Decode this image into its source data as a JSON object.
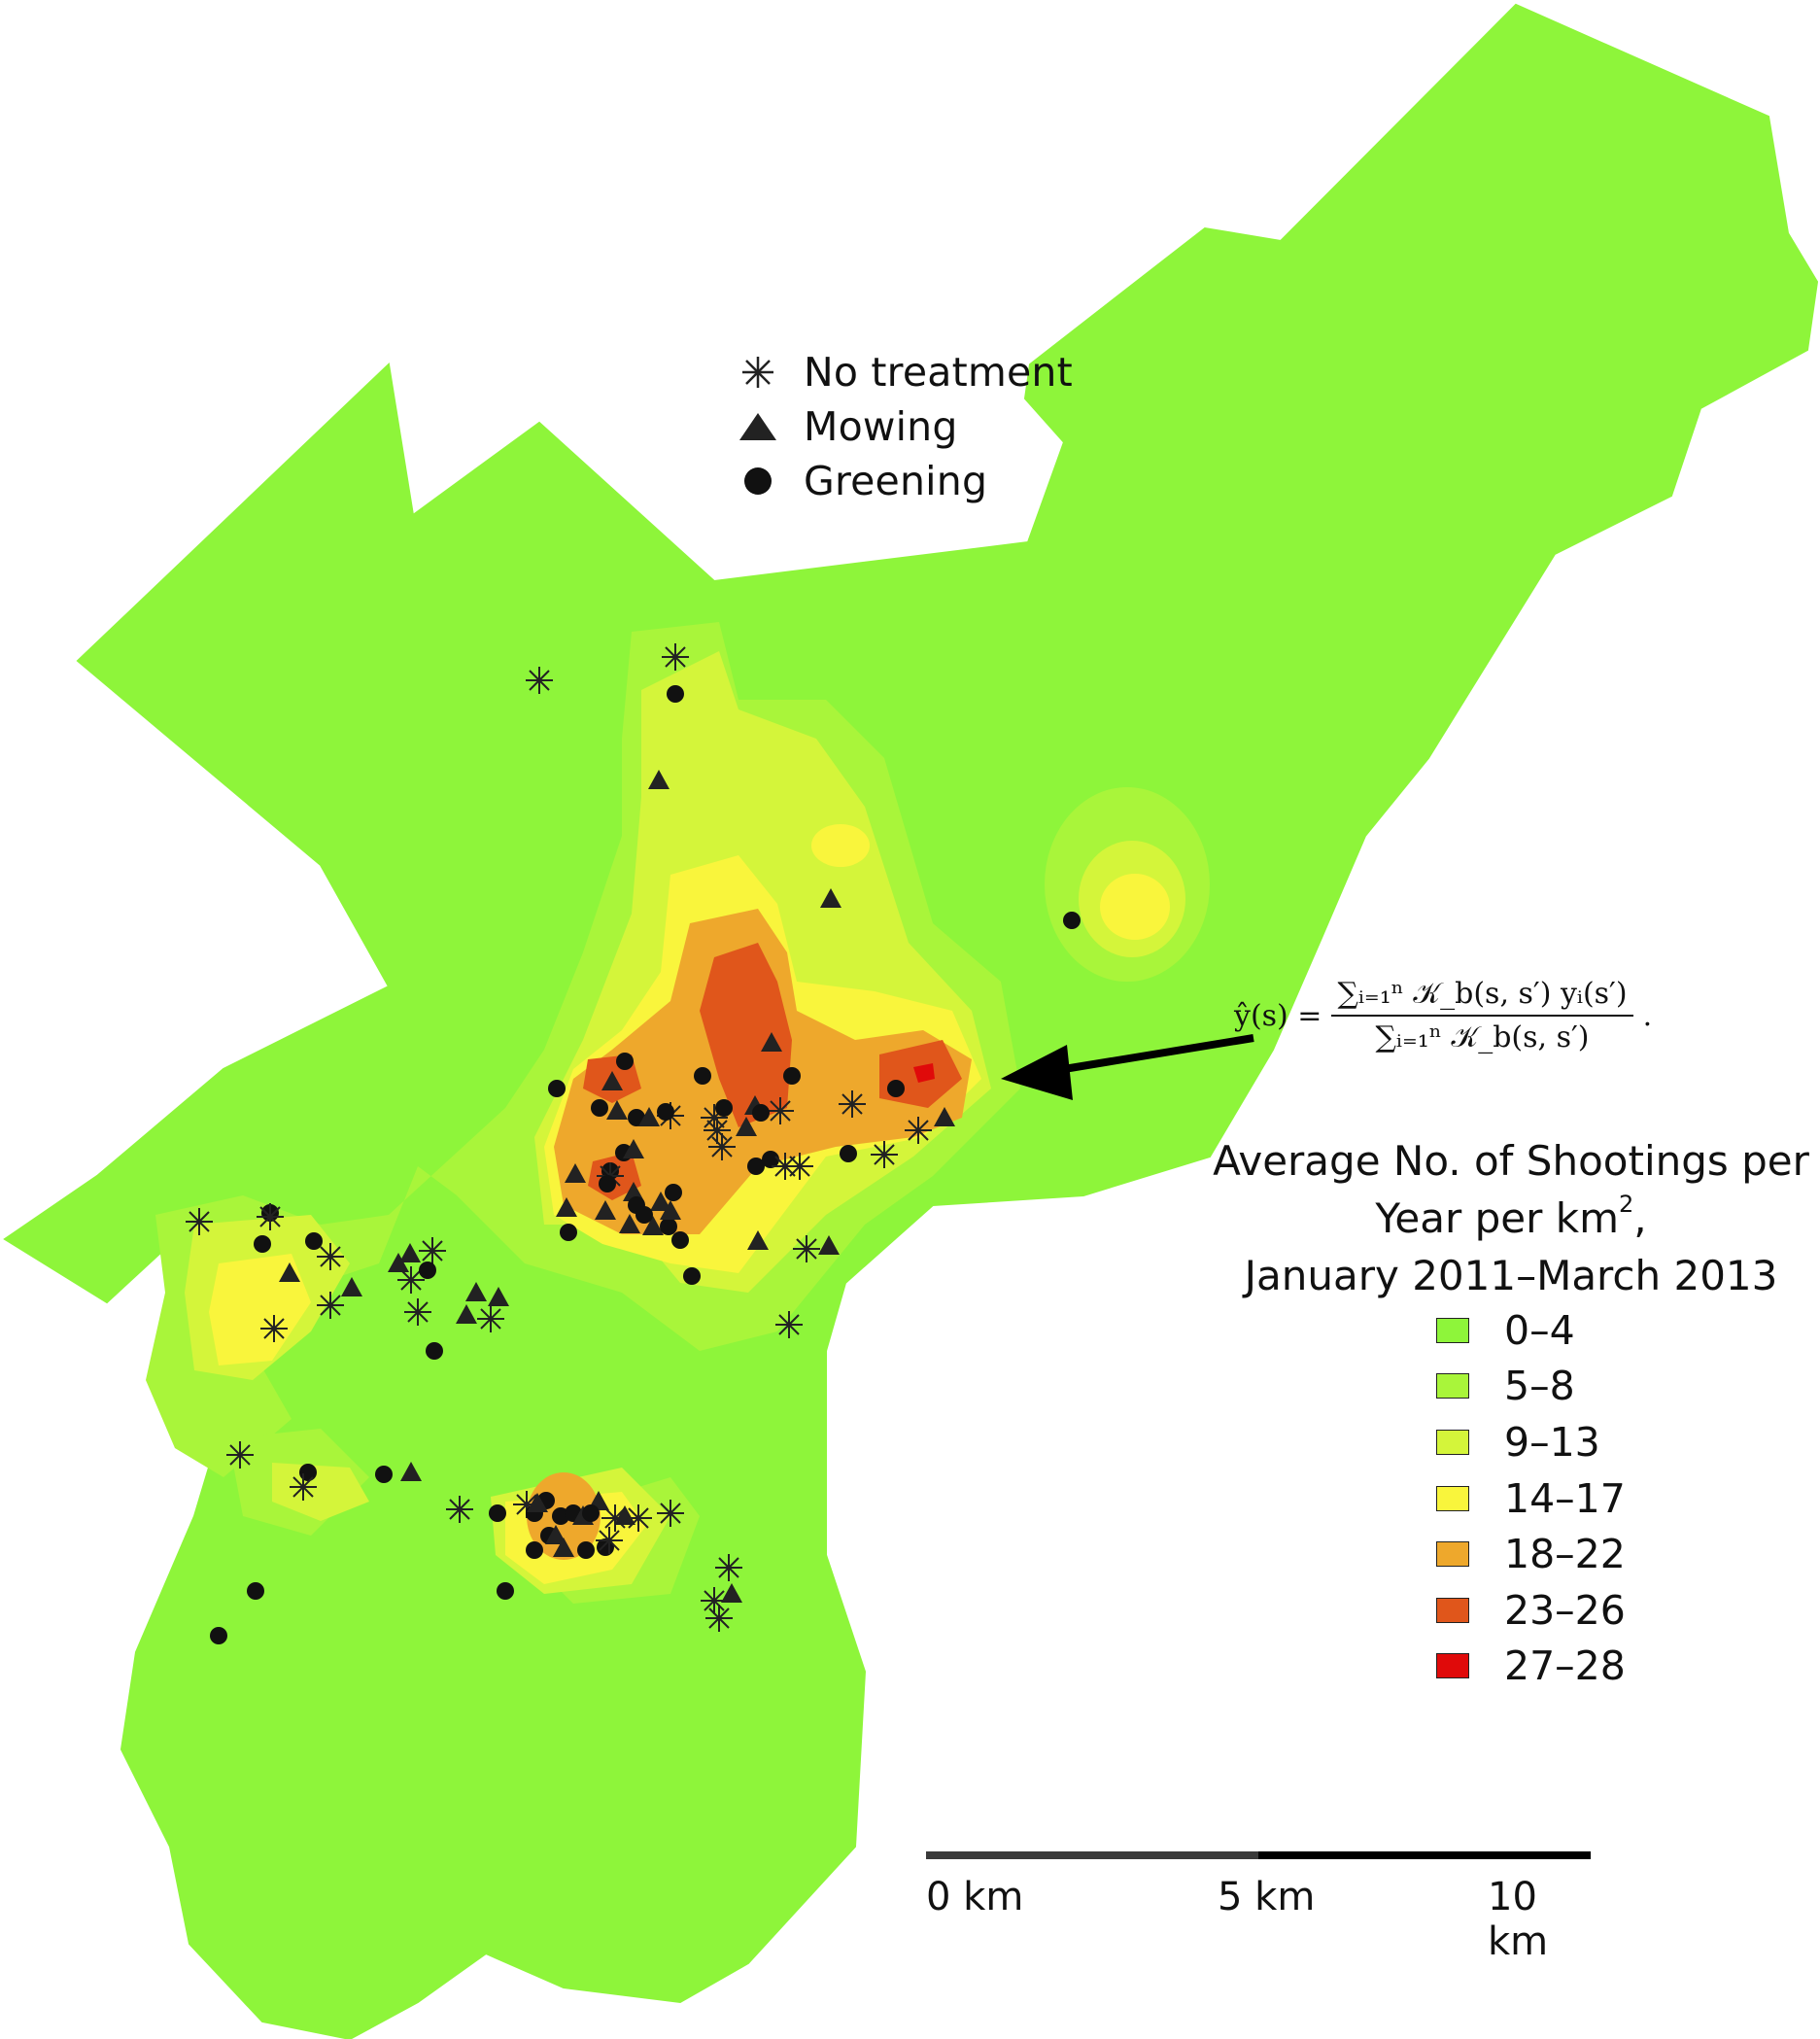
{
  "symbol_legend": {
    "no_treatment": "No treatment",
    "mowing": "Mowing",
    "greening": "Greening"
  },
  "formula": {
    "lhs": "ŷ(s) =",
    "numerator": "∑ᵢ₌₁ⁿ 𝒦_b(s, s′) yᵢ(s′)",
    "denominator": "∑ᵢ₌₁ⁿ 𝒦_b(s, s′)",
    "end": "."
  },
  "legend": {
    "title_line1": "Average No. of Shootings per",
    "title_line2": "Year per km",
    "title_sup": "2",
    "title_line2_end": ",",
    "title_line3": "January 2011–March 2013",
    "classes": [
      {
        "label": "0–4",
        "color": "#8ef53a"
      },
      {
        "label": "5–8",
        "color": "#a9f53a"
      },
      {
        "label": "9–13",
        "color": "#d4f53a"
      },
      {
        "label": "14–17",
        "color": "#f9f53c"
      },
      {
        "label": "18–22",
        "color": "#eea82c"
      },
      {
        "label": "23–26",
        "color": "#e0561b"
      },
      {
        "label": "27–28",
        "color": "#e00a0a"
      }
    ]
  },
  "scale_bar": {
    "label_0": "0 km",
    "label_5": "5 km",
    "label_10": "10 km"
  }
}
